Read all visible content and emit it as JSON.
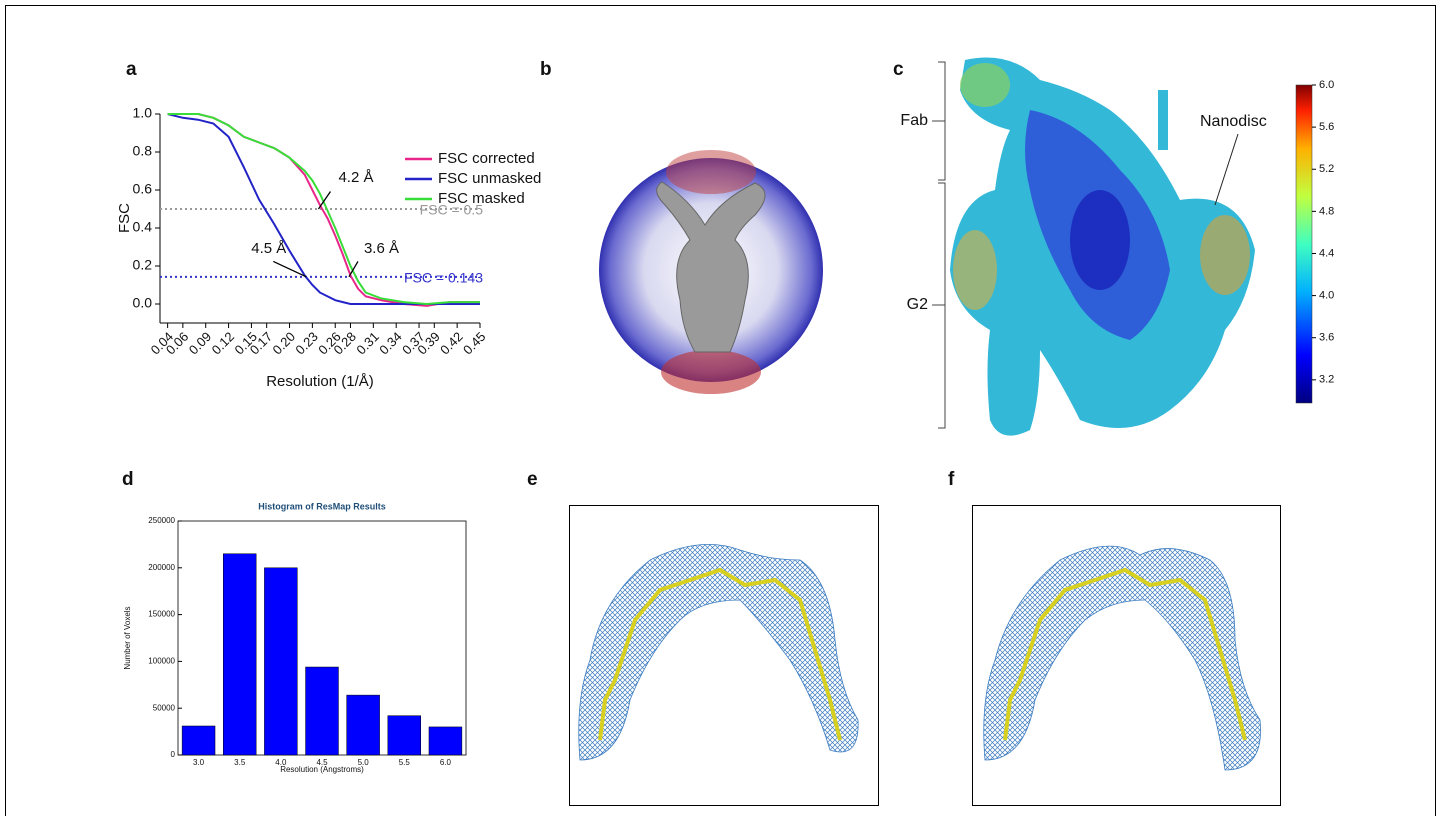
{
  "panel_labels": [
    "a",
    "b",
    "c",
    "d",
    "e",
    "f"
  ],
  "chart_data": [
    {
      "type": "line",
      "x_label": "Resolution (1/Å)",
      "y_label": "FSC",
      "x": [
        0.04,
        0.06,
        0.08,
        0.1,
        0.12,
        0.14,
        0.16,
        0.18,
        0.2,
        0.22,
        0.23,
        0.24,
        0.25,
        0.26,
        0.27,
        0.28,
        0.29,
        0.3,
        0.32,
        0.35,
        0.38,
        0.41,
        0.45
      ],
      "series": [
        {
          "name": "FSC corrected",
          "color": "#e8268a",
          "values": [
            1.0,
            1.0,
            1.0,
            0.98,
            0.94,
            0.88,
            0.85,
            0.82,
            0.77,
            0.68,
            0.6,
            0.52,
            0.45,
            0.36,
            0.26,
            0.15,
            0.08,
            0.04,
            0.02,
            0.0,
            -0.01,
            0.01,
            0.01
          ]
        },
        {
          "name": "FSC unmasked",
          "color": "#2323c8",
          "values": [
            1.0,
            0.98,
            0.97,
            0.95,
            0.88,
            0.72,
            0.55,
            0.42,
            0.28,
            0.15,
            0.1,
            0.06,
            0.04,
            0.02,
            0.01,
            0.0,
            0.0,
            0.0,
            0.0,
            0.0,
            0.0,
            0.0,
            0.0
          ]
        },
        {
          "name": "FSC masked",
          "color": "#38dd38",
          "values": [
            1.0,
            1.0,
            1.0,
            0.98,
            0.94,
            0.88,
            0.85,
            0.82,
            0.77,
            0.7,
            0.65,
            0.58,
            0.49,
            0.4,
            0.3,
            0.2,
            0.12,
            0.06,
            0.03,
            0.01,
            0.0,
            0.01,
            0.01
          ]
        }
      ],
      "hlines": [
        {
          "value": 0.5,
          "label": "FSC = 0.5",
          "color": "#999999"
        },
        {
          "value": 0.143,
          "label": "FSC = 0.143",
          "color": "#3333cc"
        }
      ],
      "annotations": [
        {
          "text": "4.2 Å",
          "x": 0.238,
          "y": 0.5
        },
        {
          "text": "4.5 Å",
          "x": 0.222,
          "y": 0.143
        },
        {
          "text": "3.6 Å",
          "x": 0.278,
          "y": 0.143
        }
      ],
      "xlim": [
        0.03,
        0.45
      ],
      "xticks": [
        0.04,
        0.06,
        0.09,
        0.12,
        0.15,
        0.17,
        {
          "value": 0.2,
          "label": "0.20"
        },
        0.23,
        0.26,
        0.28,
        0.31,
        0.34,
        0.37,
        0.39,
        0.42,
        0.45
      ],
      "ylim": [
        -0.1,
        1.0
      ],
      "yticks": [
        {
          "value": 0,
          "label": "0.0"
        },
        0.2,
        0.4,
        0.6,
        0.8,
        {
          "value": 1,
          "label": "1.0"
        }
      ]
    },
    {
      "type": "bar",
      "title": "Histogram of ResMap Results",
      "x_label": "Resolution (Angstroms)",
      "y_label": "Number of Voxels",
      "categories": [
        "3.0",
        "3.5",
        "4.0",
        "4.5",
        "5.0",
        "5.5",
        "6.0"
      ],
      "values": [
        31000,
        215000,
        200000,
        94000,
        64000,
        42000,
        30000
      ],
      "color": "#0000ff",
      "ylim": [
        0,
        250000
      ],
      "yticks": [
        0,
        50000,
        100000,
        150000,
        200000,
        250000
      ]
    }
  ],
  "local_resolution_map": {
    "labels": [
      "Fab",
      "G2",
      "Nanodisc"
    ],
    "colorbar_lim": [
      2.98,
      6.0
    ],
    "colorbar_ticks": [
      {
        "value": 6,
        "label": "6.0"
      },
      5.6,
      5.2,
      4.8,
      4.4,
      {
        "value": 4,
        "label": "4.0"
      },
      3.6,
      3.2
    ]
  }
}
